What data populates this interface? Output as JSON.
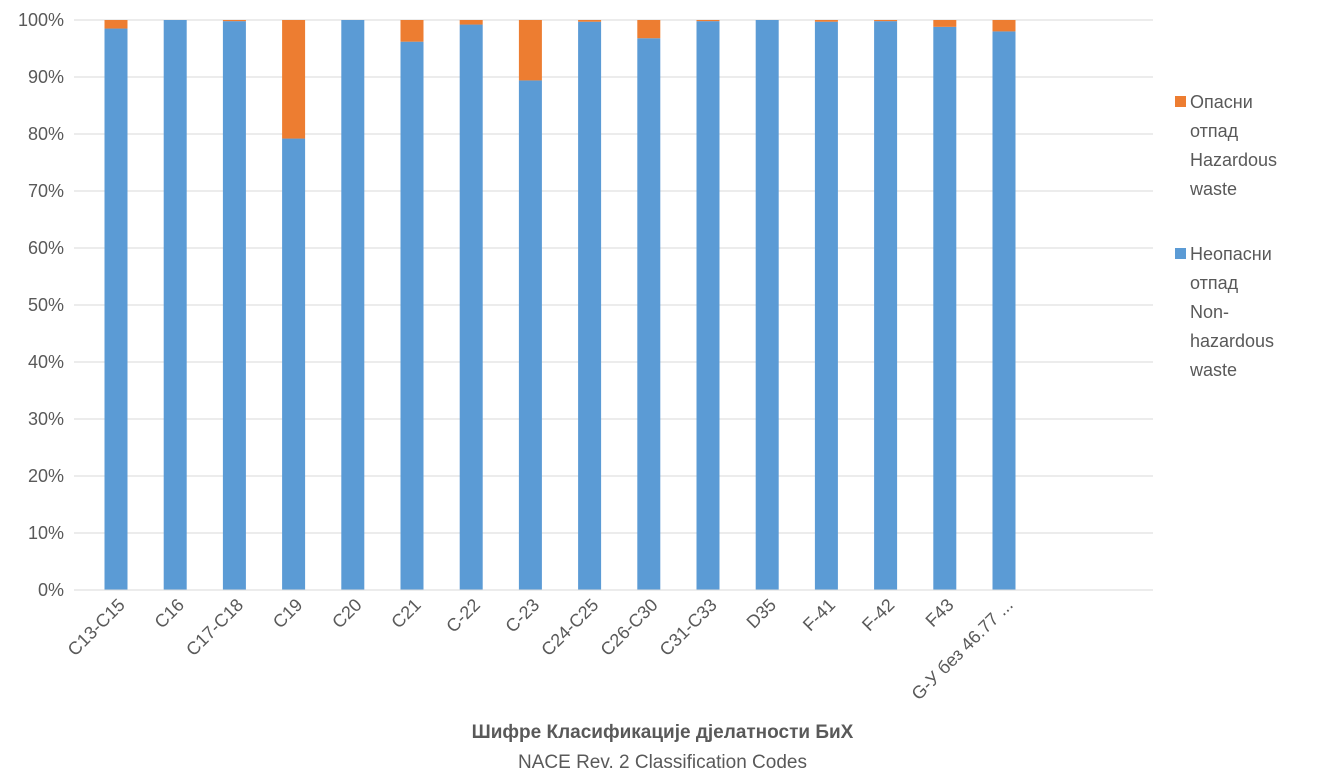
{
  "chart_data": {
    "type": "bar",
    "stacked": true,
    "percent_stacked": true,
    "categories": [
      "C13-C15",
      "C16",
      "C17-C18",
      "C19",
      "C20",
      "C21",
      "C-22",
      "C-23",
      "C24-C25",
      "C26-C30",
      "C31-C33",
      "D35",
      "F-41",
      "F-42",
      "F43",
      "G-У без 46.77 ..."
    ],
    "series": [
      {
        "name": "Неопасни\nотпад\nNon-\nhazardous\nwaste",
        "color": "#5B9BD5",
        "values": [
          98.5,
          100,
          99.8,
          79.2,
          100,
          96.2,
          99.2,
          89.4,
          99.7,
          96.8,
          99.8,
          100,
          99.7,
          99.8,
          98.8,
          98.0
        ]
      },
      {
        "name": "Опасни\nотпад\nHazardous\nwaste",
        "color": "#ED7D31",
        "values": [
          1.5,
          0,
          0.2,
          20.8,
          0,
          3.8,
          0.8,
          10.6,
          0.3,
          3.2,
          0.2,
          0,
          0.3,
          0.2,
          1.2,
          2.0
        ]
      }
    ],
    "y_ticks": [
      "0%",
      "10%",
      "20%",
      "30%",
      "40%",
      "50%",
      "60%",
      "70%",
      "80%",
      "90%",
      "100%"
    ],
    "ylim": [
      0,
      100
    ],
    "grid": true,
    "legend_position": "right",
    "xlabel": "Шифре Класификације дјелатности БиХ",
    "xlabel_sub": "NACE Rev. 2 Classification Codes"
  }
}
